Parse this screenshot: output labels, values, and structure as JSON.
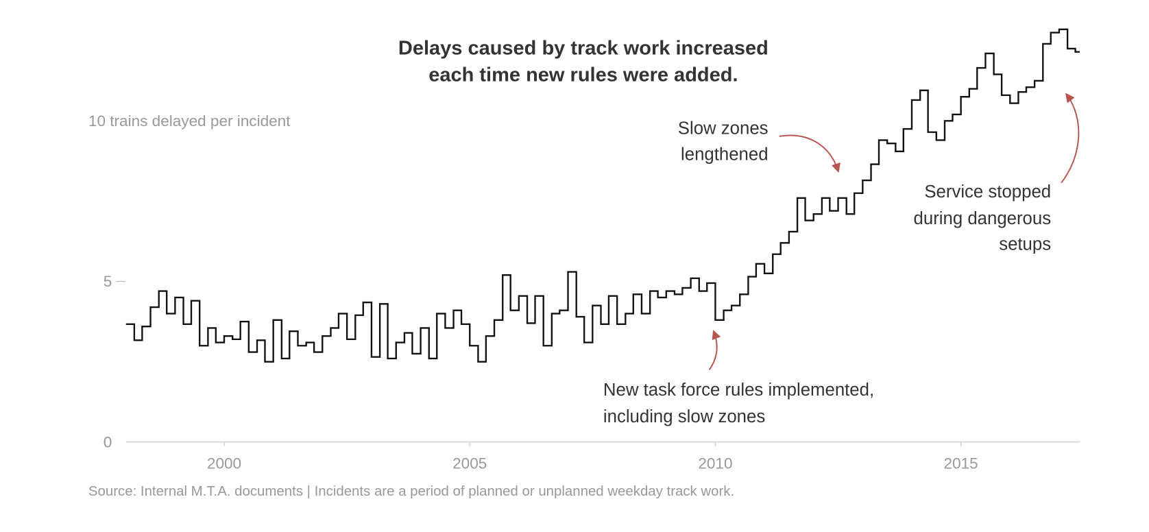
{
  "chart_data": {
    "type": "line",
    "step": true,
    "title": [
      "Delays caused by track work increased",
      "each time new rules were added."
    ],
    "source": "Source: Internal M.T.A. documents | Incidents are a period of planned or unplanned weekday track work.",
    "color": "#111111",
    "annotation_color": "#b85450",
    "annotations": [
      {
        "lines": [
          "Slow zones",
          "lengthened"
        ]
      },
      {
        "lines": [
          "New task force rules implemented,",
          "including slow zones"
        ]
      },
      {
        "lines": [
          "Service stopped",
          "during dangerous",
          "setups"
        ]
      }
    ],
    "xlim": [
      1998,
      2017.42
    ],
    "xticks": [
      2000,
      2005,
      2010,
      2015
    ],
    "ylim": [
      0,
      13.3
    ],
    "yticks": [
      0,
      5,
      {
        "value": 10,
        "label": "10 trains delayed per incident"
      }
    ],
    "x": [
      1998,
      1998.17,
      1998.33,
      1998.5,
      1998.67,
      1998.83,
      1999,
      1999.17,
      1999.33,
      1999.5,
      1999.67,
      1999.83,
      2000,
      2000.17,
      2000.33,
      2000.5,
      2000.67,
      2000.83,
      2001,
      2001.17,
      2001.33,
      2001.5,
      2001.67,
      2001.83,
      2002,
      2002.17,
      2002.33,
      2002.5,
      2002.67,
      2002.83,
      2003,
      2003.17,
      2003.33,
      2003.5,
      2003.67,
      2003.83,
      2004,
      2004.17,
      2004.33,
      2004.5,
      2004.67,
      2004.83,
      2005,
      2005.17,
      2005.33,
      2005.5,
      2005.67,
      2005.83,
      2006,
      2006.17,
      2006.33,
      2006.5,
      2006.67,
      2006.83,
      2007,
      2007.17,
      2007.33,
      2007.5,
      2007.67,
      2007.83,
      2008,
      2008.17,
      2008.33,
      2008.5,
      2008.67,
      2008.83,
      2009,
      2009.17,
      2009.33,
      2009.5,
      2009.67,
      2009.83,
      2010,
      2010.17,
      2010.33,
      2010.5,
      2010.67,
      2010.83,
      2011,
      2011.17,
      2011.33,
      2011.5,
      2011.67,
      2011.83,
      2012,
      2012.17,
      2012.33,
      2012.5,
      2012.67,
      2012.83,
      2013,
      2013.17,
      2013.33,
      2013.5,
      2013.67,
      2013.83,
      2014,
      2014.17,
      2014.33,
      2014.5,
      2014.67,
      2014.83,
      2015,
      2015.17,
      2015.33,
      2015.5,
      2015.67,
      2015.83,
      2016,
      2016.17,
      2016.33,
      2016.5,
      2016.67,
      2016.83,
      2017,
      2017.17,
      2017.33
    ],
    "values": [
      3.67,
      3.17,
      3.6,
      4.2,
      4.7,
      4.0,
      4.5,
      3.67,
      4.4,
      3.0,
      3.55,
      3.1,
      3.3,
      3.2,
      3.75,
      2.8,
      3.17,
      2.5,
      3.8,
      2.6,
      3.45,
      3.0,
      3.1,
      2.8,
      3.3,
      3.55,
      4.0,
      3.2,
      3.95,
      4.35,
      2.65,
      4.3,
      2.6,
      3.1,
      3.4,
      2.75,
      3.55,
      2.6,
      4.0,
      3.55,
      4.1,
      3.67,
      3.0,
      2.5,
      3.3,
      3.8,
      5.2,
      4.1,
      4.55,
      3.7,
      4.55,
      3.0,
      4.0,
      4.1,
      5.3,
      3.9,
      3.1,
      4.25,
      3.67,
      4.55,
      3.67,
      4.0,
      4.6,
      4.0,
      4.7,
      4.5,
      4.7,
      4.6,
      4.8,
      5.1,
      4.7,
      4.95,
      3.8,
      4.1,
      4.25,
      4.6,
      5.15,
      5.55,
      5.25,
      5.85,
      6.2,
      6.55,
      7.6,
      6.9,
      7.1,
      7.6,
      7.2,
      7.6,
      7.1,
      7.75,
      8.15,
      8.65,
      9.4,
      9.3,
      9.05,
      9.75,
      10.65,
      10.95,
      9.65,
      9.4,
      10.0,
      10.2,
      10.75,
      11.0,
      11.65,
      12.1,
      11.45,
      10.8,
      10.55,
      10.9,
      11.05,
      11.25,
      12.4,
      12.75,
      12.85,
      12.25,
      12.15
    ]
  }
}
